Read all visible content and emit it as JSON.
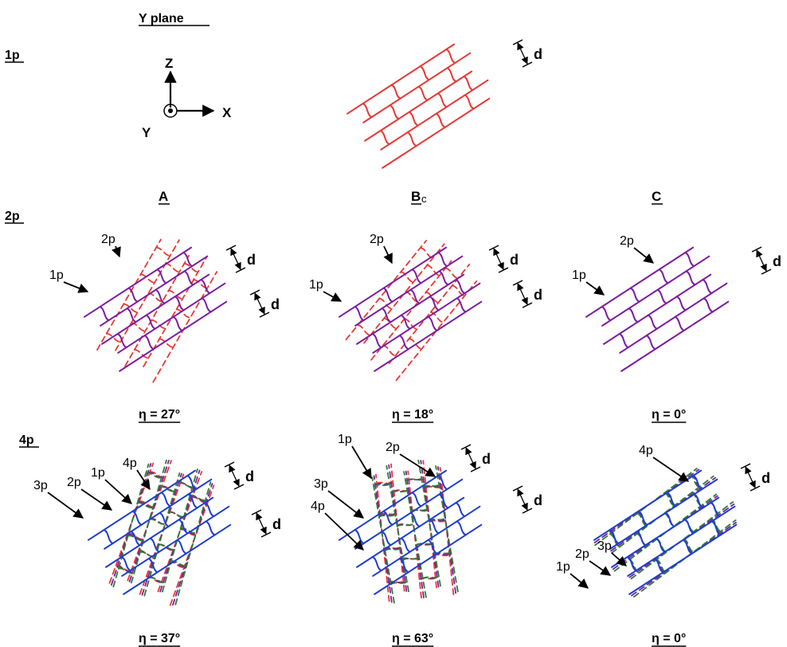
{
  "colors": {
    "layer_1p": "#e53935",
    "layer_2p": "#7b1fa2",
    "layer_3p": "#2e7d32",
    "layer_4p": "#1e3fd0",
    "text": "#000000"
  },
  "header": {
    "plane_title": "Y plane",
    "row_1p_label": "1p",
    "row_2p_label": "2p",
    "row_4p_label": "4p"
  },
  "axes": {
    "z": "Z",
    "x": "X",
    "y": "Y"
  },
  "columns": {
    "a": "A",
    "b_main": "B",
    "b_sub": "c",
    "c": "C"
  },
  "spacing_label": "d",
  "panels": {
    "p1": {
      "layers": [
        "1p"
      ],
      "dashed": []
    },
    "a2": {
      "eta": "η = 27°",
      "solid": "2p",
      "dashed": [
        "1p"
      ],
      "rot": [
        0,
        27
      ],
      "labels": [
        "2p",
        "1p"
      ]
    },
    "b2": {
      "eta": "η = 18°",
      "solid": "2p",
      "dashed": [
        "1p"
      ],
      "rot": [
        0,
        18
      ],
      "labels": [
        "2p",
        "1p"
      ]
    },
    "c2": {
      "eta": "η = 0°",
      "solid": "2p",
      "dashed": [
        "1p"
      ],
      "rot": [
        0,
        0
      ],
      "labels": [
        "2p",
        "1p"
      ]
    },
    "a4": {
      "eta": "η = 37°",
      "solid": "4p",
      "dashed": [
        "1p",
        "2p",
        "3p"
      ],
      "rot": [
        0,
        37
      ],
      "labels": [
        "3p",
        "2p",
        "1p",
        "4p"
      ]
    },
    "b4": {
      "eta": "η = 63°",
      "solid": "4p",
      "dashed": [
        "1p",
        "2p",
        "3p"
      ],
      "rot": [
        0,
        63
      ],
      "labels": [
        "1p",
        "2p",
        "3p",
        "4p"
      ]
    },
    "c4": {
      "eta": "η = 0°",
      "solid": "4p",
      "dashed": [
        "1p",
        "2p",
        "3p"
      ],
      "rot": [
        0,
        0
      ],
      "labels": [
        "1p",
        "2p",
        "3p",
        "4p"
      ]
    }
  }
}
